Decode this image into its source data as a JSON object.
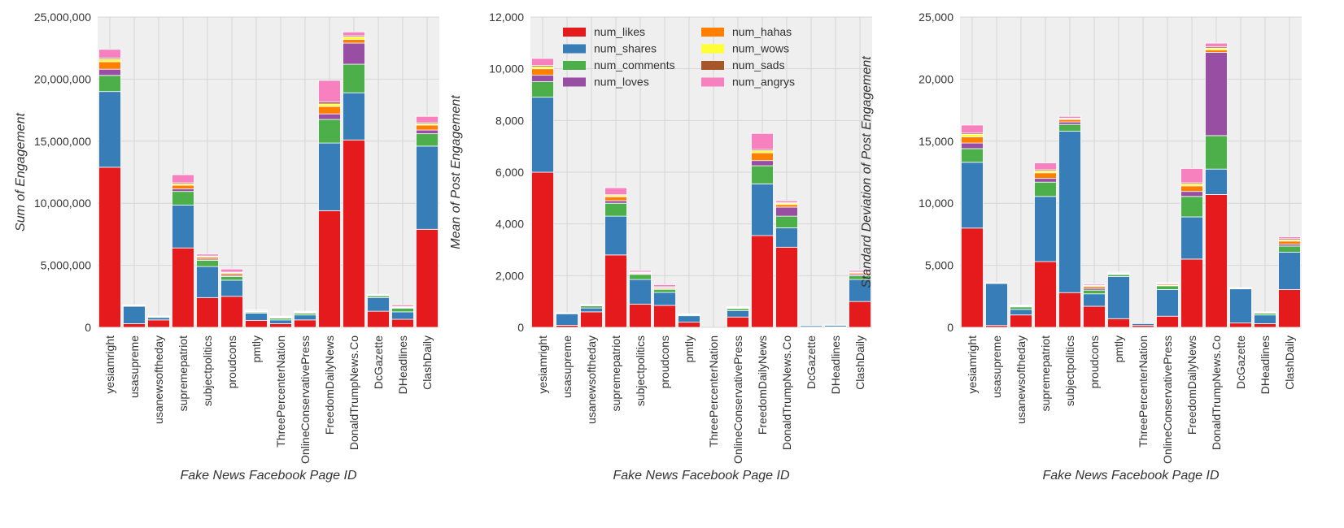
{
  "chart_data": [
    {
      "type": "bar",
      "stacked": true,
      "ylabel": "Sum of Engagement",
      "xlabel": "Fake News Facebook Page ID",
      "ylim": [
        0,
        25000000
      ],
      "yticks": [
        0,
        5000000,
        10000000,
        15000000,
        20000000,
        25000000
      ],
      "ytick_labels": [
        "0",
        "5,000,000",
        "10,000,000",
        "15,000,000",
        "20,000,000",
        "25,000,000"
      ],
      "grid": true,
      "categories": [
        "yesiamright",
        "usasupreme",
        "usanewsoftheday",
        "supremepatriot",
        "subjectpolitics",
        "proudcons",
        "pmtly",
        "ThreePercenterNation",
        "OnlineConservativePress",
        "FreedomDailyNews",
        "DonaldTrumpNews.Co",
        "DcGazette",
        "DHeadlines",
        "ClashDaily"
      ],
      "series": [
        {
          "name": "num_likes",
          "values": [
            12900000,
            300000,
            600000,
            6400000,
            2400000,
            2500000,
            550000,
            300000,
            600000,
            9400000,
            15100000,
            1300000,
            650000,
            7900000
          ]
        },
        {
          "name": "num_shares",
          "values": [
            6100000,
            1400000,
            200000,
            3450000,
            2500000,
            1300000,
            600000,
            300000,
            400000,
            5450000,
            3800000,
            1100000,
            600000,
            6700000
          ]
        },
        {
          "name": "num_comments",
          "values": [
            1300000,
            50000,
            50000,
            1100000,
            500000,
            300000,
            100000,
            150000,
            150000,
            1900000,
            2300000,
            150000,
            300000,
            1000000
          ]
        },
        {
          "name": "num_loves",
          "values": [
            500000,
            20000,
            10000,
            200000,
            100000,
            100000,
            10000,
            20000,
            20000,
            450000,
            1700000,
            20000,
            50000,
            300000
          ]
        },
        {
          "name": "num_hahas",
          "values": [
            600000,
            20000,
            30000,
            300000,
            150000,
            150000,
            50000,
            50000,
            50000,
            600000,
            300000,
            30000,
            50000,
            400000
          ]
        },
        {
          "name": "num_wows",
          "values": [
            200000,
            10000,
            10000,
            100000,
            50000,
            50000,
            20000,
            20000,
            20000,
            200000,
            200000,
            10000,
            20000,
            100000
          ]
        },
        {
          "name": "num_sads",
          "values": [
            100000,
            5000,
            5000,
            100000,
            50000,
            50000,
            10000,
            10000,
            10000,
            150000,
            100000,
            10000,
            10000,
            100000
          ]
        },
        {
          "name": "num_angrys",
          "values": [
            700000,
            10000,
            10000,
            650000,
            150000,
            250000,
            60000,
            50000,
            50000,
            1750000,
            300000,
            30000,
            130000,
            500000
          ]
        }
      ]
    },
    {
      "type": "bar",
      "stacked": true,
      "ylabel": "Mean of Post Engagement",
      "xlabel": "Fake News Facebook Page ID",
      "ylim": [
        0,
        12000
      ],
      "yticks": [
        0,
        2000,
        4000,
        6000,
        8000,
        10000,
        12000
      ],
      "ytick_labels": [
        "0",
        "2,000",
        "4,000",
        "6,000",
        "8,000",
        "10,000",
        "12,000"
      ],
      "grid": true,
      "legend": "top-center",
      "categories": [
        "yesiamright",
        "usasupreme",
        "usanewsoftheday",
        "supremepatriot",
        "subjectpolitics",
        "proudcons",
        "pmtly",
        "ThreePercenterNation",
        "OnlineConservativePress",
        "FreedomDailyNews",
        "DonaldTrumpNews.Co",
        "DcGazette",
        "DHeadlines",
        "ClashDaily"
      ],
      "series": [
        {
          "name": "num_likes",
          "values": [
            6000,
            80,
            600,
            2800,
            900,
            850,
            200,
            0,
            400,
            3550,
            3100,
            10,
            20,
            1000
          ]
        },
        {
          "name": "num_shares",
          "values": [
            2900,
            450,
            150,
            1500,
            950,
            500,
            250,
            0,
            250,
            2000,
            750,
            60,
            60,
            850
          ]
        },
        {
          "name": "num_comments",
          "values": [
            600,
            10,
            80,
            500,
            200,
            120,
            30,
            0,
            80,
            700,
            450,
            10,
            10,
            150
          ]
        },
        {
          "name": "num_loves",
          "values": [
            250,
            5,
            20,
            100,
            30,
            30,
            10,
            0,
            10,
            200,
            350,
            0,
            0,
            50
          ]
        },
        {
          "name": "num_hahas",
          "values": [
            250,
            5,
            10,
            150,
            30,
            40,
            10,
            0,
            20,
            300,
            100,
            0,
            0,
            50
          ]
        },
        {
          "name": "num_wows",
          "values": [
            80,
            3,
            5,
            50,
            20,
            20,
            5,
            0,
            10,
            80,
            50,
            0,
            0,
            20
          ]
        },
        {
          "name": "num_sads",
          "values": [
            50,
            2,
            5,
            30,
            10,
            10,
            5,
            0,
            5,
            50,
            30,
            0,
            0,
            20
          ]
        },
        {
          "name": "num_angrys",
          "values": [
            270,
            5,
            10,
            270,
            60,
            80,
            15,
            0,
            25,
            620,
            70,
            0,
            0,
            60
          ]
        }
      ]
    },
    {
      "type": "bar",
      "stacked": true,
      "ylabel": "Standard Deviation of Post Engagement",
      "xlabel": "Fake News Facebook Page ID",
      "ylim": [
        0,
        25000
      ],
      "yticks": [
        0,
        5000,
        10000,
        15000,
        20000,
        25000
      ],
      "ytick_labels": [
        "0",
        "5,000",
        "10,000",
        "15,000",
        "20,000",
        "25,000"
      ],
      "grid": true,
      "categories": [
        "yesiamright",
        "usasupreme",
        "usanewsoftheday",
        "supremepatriot",
        "subjectpolitics",
        "proudcons",
        "pmtly",
        "ThreePercenterNation",
        "OnlineConservativePress",
        "FreedomDailyNews",
        "DonaldTrumpNews.Co",
        "DcGazette",
        "DHeadlines",
        "ClashDaily"
      ],
      "series": [
        {
          "name": "num_likes",
          "values": [
            8000,
            150,
            1000,
            5300,
            2800,
            1700,
            700,
            150,
            900,
            5500,
            10700,
            350,
            300,
            3050
          ]
        },
        {
          "name": "num_shares",
          "values": [
            5300,
            3400,
            450,
            5250,
            13000,
            1000,
            3400,
            150,
            2150,
            3400,
            2050,
            2750,
            700,
            3000
          ]
        },
        {
          "name": "num_comments",
          "values": [
            1100,
            20,
            200,
            1150,
            550,
            300,
            150,
            0,
            300,
            1650,
            2700,
            50,
            150,
            500
          ]
        },
        {
          "name": "num_loves",
          "values": [
            450,
            10,
            50,
            300,
            200,
            150,
            50,
            0,
            50,
            400,
            6700,
            10,
            20,
            150
          ]
        },
        {
          "name": "num_hahas",
          "values": [
            500,
            10,
            50,
            450,
            200,
            150,
            50,
            0,
            100,
            450,
            200,
            10,
            20,
            250
          ]
        },
        {
          "name": "num_wows",
          "values": [
            200,
            5,
            20,
            150,
            50,
            50,
            20,
            0,
            20,
            150,
            150,
            0,
            10,
            100
          ]
        },
        {
          "name": "num_sads",
          "values": [
            100,
            5,
            10,
            100,
            50,
            50,
            20,
            0,
            20,
            100,
            100,
            0,
            10,
            100
          ]
        },
        {
          "name": "num_angrys",
          "values": [
            650,
            0,
            20,
            550,
            150,
            100,
            60,
            0,
            60,
            1150,
            300,
            30,
            40,
            150
          ]
        }
      ]
    }
  ],
  "colors": {
    "num_likes": "#e41a1c",
    "num_shares": "#377eb8",
    "num_comments": "#4daf4a",
    "num_loves": "#984ea3",
    "num_hahas": "#ff7f00",
    "num_wows": "#ffff33",
    "num_sads": "#a65628",
    "num_angrys": "#f781bf",
    "plot_background": "#efefef",
    "grid": "#d6d6d6",
    "bar_edge": "#ffffff"
  }
}
